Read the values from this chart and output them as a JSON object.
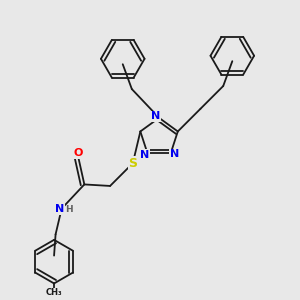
{
  "background_color": "#e8e8e8",
  "bond_color": "#1a1a1a",
  "atom_colors": {
    "N": "#0000ee",
    "S": "#cccc00",
    "O": "#ff0000",
    "C": "#1a1a1a",
    "H": "#606060"
  }
}
